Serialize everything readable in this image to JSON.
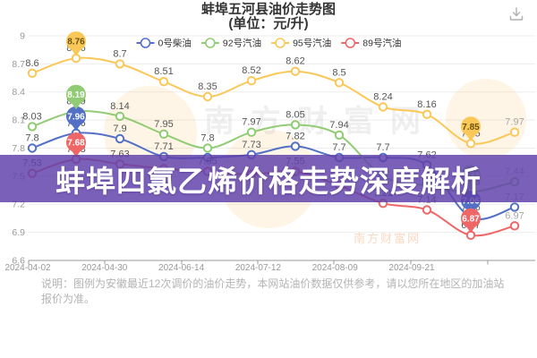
{
  "title": {
    "line1": "蚌埠五河县油价走势图",
    "line2": "(单位：元/升)"
  },
  "toolbox": {
    "icon": "download-icon",
    "color": "#b0b0b0"
  },
  "overlay_banner": {
    "text": "蚌埠四氯乙烯价格走势深度解析",
    "bg_color": "#6042aa",
    "opacity": 0.84,
    "text_color": "#ffffff"
  },
  "note": {
    "text": "说明：图例为安徽最近12次调价的油价走势，本网站油价数据仅供参考，请以您所在地区的加油站报价为准。"
  },
  "watermark": {
    "site_text": "南方财富网",
    "gray_color": "#999999",
    "accent_color": "#f08032"
  },
  "chart_data": {
    "type": "line",
    "smooth": true,
    "grid": true,
    "legend_position": "top",
    "x_axis": {
      "labels": [
        "2024-04-02",
        "2024-04-30",
        "2024-06-14",
        "2024-07-12",
        "2024-08-09",
        "2024-09-21"
      ]
    },
    "y_axis": {
      "min": 6.6,
      "max": 9,
      "step": 0.3,
      "ticks": [
        9,
        8.7,
        8.4,
        8.1,
        7.8,
        7.5,
        7.2,
        6.9,
        6.6
      ]
    },
    "series": [
      {
        "name": "0号柴油",
        "color": "#5470c6",
        "pin_text_color": "#ffffff",
        "values": [
          7.8,
          7.96,
          7.9,
          7.71,
          7.7,
          7.73,
          7.82,
          7.7,
          7.7,
          7.62,
          7.06,
          7.17
        ],
        "label_hidden": [
          4
        ],
        "max_point": {
          "index": 1,
          "value": 7.96
        },
        "min_point": {
          "index": 10,
          "value": 7.06
        }
      },
      {
        "name": "92号汽油",
        "color": "#91cc75",
        "pin_text_color": "#ffffff",
        "values": [
          8.03,
          8.19,
          8.14,
          7.95,
          7.8,
          7.97,
          8.05,
          7.94,
          7.5,
          7.4,
          7.33,
          7.44
        ],
        "label_hidden": [
          8,
          9
        ],
        "max_point": {
          "index": 1,
          "value": 8.19
        },
        "min_point": {
          "index": 10,
          "value": 7.33
        }
      },
      {
        "name": "95号汽油",
        "color": "#fac858",
        "pin_text_color": "#6b5310",
        "values": [
          8.6,
          8.76,
          8.7,
          8.51,
          8.35,
          8.52,
          8.62,
          8.5,
          8.24,
          8.16,
          7.85,
          7.97
        ],
        "label_hidden": [],
        "max_point": {
          "index": 1,
          "value": 8.76
        },
        "min_point": {
          "index": 10,
          "value": 7.85
        }
      },
      {
        "name": "89号汽油",
        "color": "#ee6666",
        "pin_text_color": "#ffffff",
        "values": [
          7.53,
          7.68,
          7.63,
          7.58,
          7.55,
          7.52,
          7.55,
          7.4,
          7.21,
          7.14,
          6.87,
          6.97
        ],
        "label_hidden": [
          3,
          5,
          7
        ],
        "max_point": {
          "index": 1,
          "value": 7.68
        },
        "min_point": {
          "index": 10,
          "value": 6.87
        }
      }
    ]
  }
}
